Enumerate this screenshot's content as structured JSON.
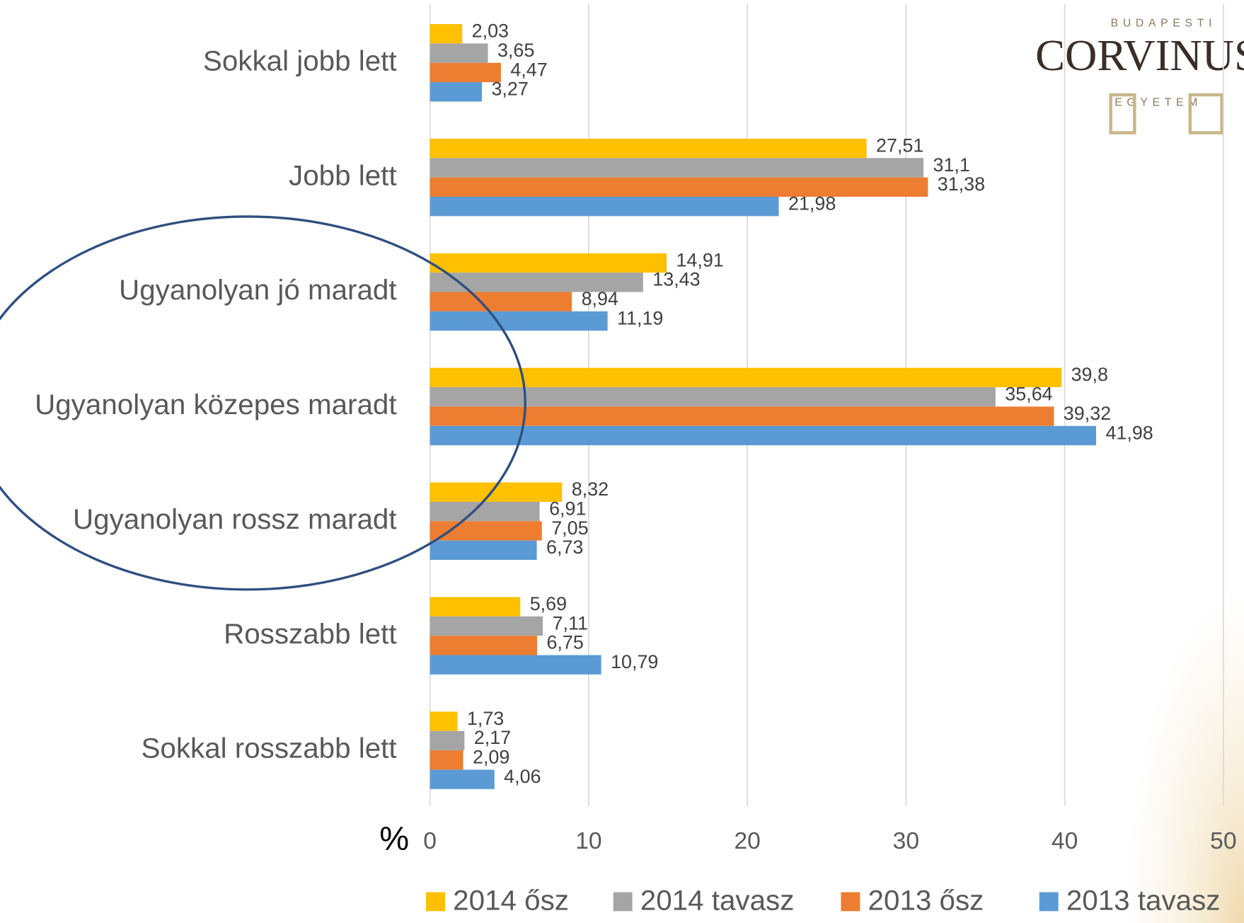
{
  "chart_data": {
    "type": "bar",
    "orientation": "horizontal",
    "x_label": "%",
    "categories": [
      "Sokkal jobb lett",
      "Jobb lett",
      "Ugyanolyan jó maradt",
      "Ugyanolyan közepes maradt",
      "Ugyanolyan rossz maradt",
      "Rosszabb lett",
      "Sokkal rosszabb lett"
    ],
    "series": [
      {
        "name": "2014 ősz",
        "color": "#ffc000",
        "values": [
          2.03,
          27.51,
          14.91,
          39.8,
          8.32,
          5.69,
          1.73
        ],
        "value_labels": [
          "2,03",
          "27,51",
          "14,91",
          "39,8",
          "8,32",
          "5,69",
          "1,73"
        ]
      },
      {
        "name": "2014 tavasz",
        "color": "#a5a5a5",
        "values": [
          3.65,
          31.1,
          13.43,
          35.64,
          6.91,
          7.11,
          2.17
        ],
        "value_labels": [
          "3,65",
          "31,1",
          "13,43",
          "35,64",
          "6,91",
          "7,11",
          "2,17"
        ]
      },
      {
        "name": "2013 ősz",
        "color": "#ed7d31",
        "values": [
          4.47,
          31.38,
          8.94,
          39.32,
          7.05,
          6.75,
          2.09
        ],
        "value_labels": [
          "4,47",
          "31,38",
          "8,94",
          "39,32",
          "7,05",
          "6,75",
          "2,09"
        ]
      },
      {
        "name": "2013 tavasz",
        "color": "#5b9bd5",
        "values": [
          3.27,
          21.98,
          11.19,
          41.98,
          6.73,
          10.79,
          4.06
        ],
        "value_labels": [
          "3,27",
          "21,98",
          "11,19",
          "41,98",
          "6,73",
          "10,79",
          "4,06"
        ]
      }
    ],
    "xlim": [
      0,
      50
    ],
    "xticks": [
      0,
      10,
      20,
      30,
      40,
      50
    ],
    "grid": true
  },
  "logo": {
    "top": "BUDAPESTI",
    "name": "CORVINUS",
    "bottom": "EGYETEM"
  }
}
